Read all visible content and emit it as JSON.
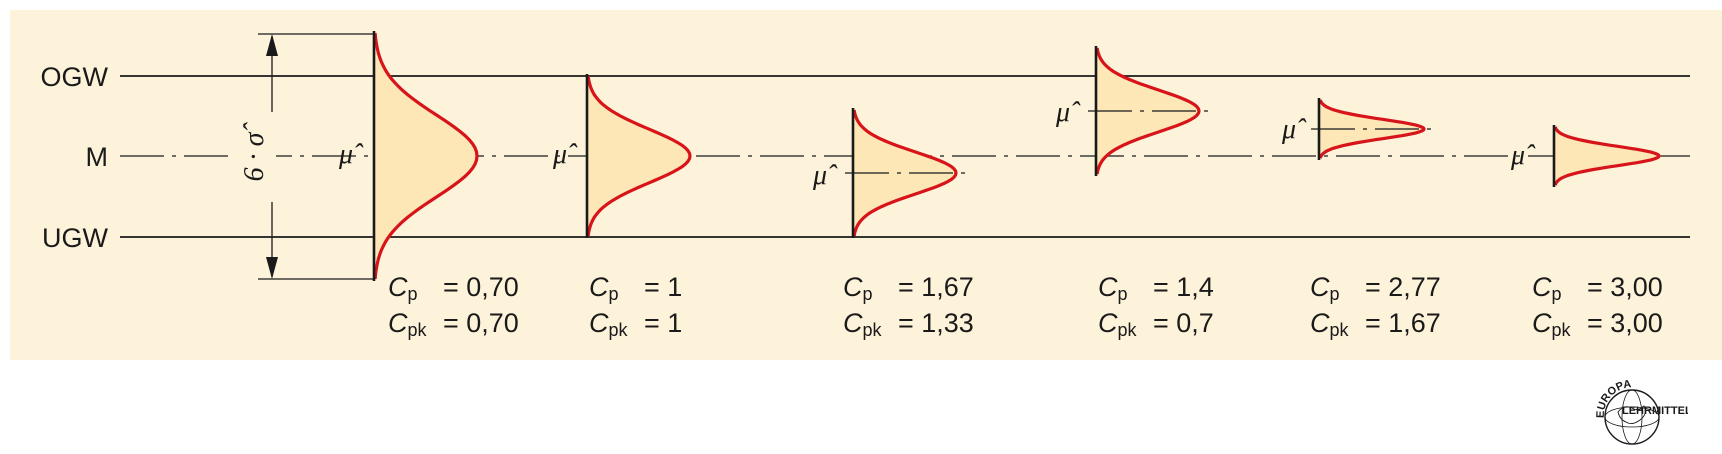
{
  "limits": {
    "upper_label": "OGW",
    "mid_label": "M",
    "lower_label": "UGW"
  },
  "sigma_label": "6 · σ̂",
  "mu_label": "μ̂",
  "colors": {
    "background": "#fdf3da",
    "curve": "#d7141a",
    "fill": "#fde7b6",
    "line": "#1a1a1a"
  },
  "cases": [
    {
      "cp_label": "C",
      "cp_sub": "p",
      "cp_value": "= 0,70",
      "cpk_label": "C",
      "cpk_sub": "pk",
      "cpk_value": "= 0,70"
    },
    {
      "cp_label": "C",
      "cp_sub": "p",
      "cp_value": "= 1",
      "cpk_label": "C",
      "cpk_sub": "pk",
      "cpk_value": "= 1"
    },
    {
      "cp_label": "C",
      "cp_sub": "p",
      "cp_value": "= 1,67",
      "cpk_label": "C",
      "cpk_sub": "pk",
      "cpk_value": "= 1,33"
    },
    {
      "cp_label": "C",
      "cp_sub": "p",
      "cp_value": "= 1,4",
      "cpk_label": "C",
      "cpk_sub": "pk",
      "cpk_value": "= 0,7"
    },
    {
      "cp_label": "C",
      "cp_sub": "p",
      "cp_value": "= 2,77",
      "cpk_label": "C",
      "cpk_sub": "pk",
      "cpk_value": "= 1,67"
    },
    {
      "cp_label": "C",
      "cp_sub": "p",
      "cp_value": "= 3,00",
      "cpk_label": "C",
      "cpk_sub": "pk",
      "cpk_value": "= 3,00"
    }
  ],
  "logo": {
    "top_text": "EUROPA",
    "bottom_text": "LEHRMITTEL"
  }
}
